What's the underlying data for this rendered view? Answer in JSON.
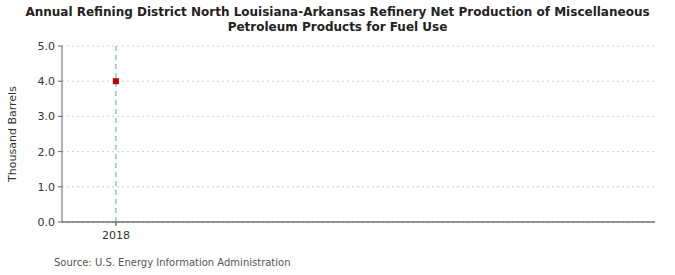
{
  "chart_data": {
    "type": "scatter",
    "title": "Annual Refining District North Louisiana-Arkansas Refinery Net Production of Miscellaneous\nPetroleum Products for Fuel Use",
    "ylabel": "Thousand Barrels",
    "source": "Source: U.S. Energy Information Administration",
    "x": [
      2018
    ],
    "values": [
      4
    ],
    "xlim": [
      2017.6,
      2022.0
    ],
    "ylim": [
      0,
      5
    ],
    "xticks": [
      2018
    ],
    "yticks": [
      {
        "value": 0,
        "label": "0.0"
      },
      {
        "value": 1,
        "label": "1.0"
      },
      {
        "value": 2,
        "label": "2.0"
      },
      {
        "value": 3,
        "label": "3.0"
      },
      {
        "value": 4,
        "label": "4.0"
      },
      {
        "value": 5,
        "label": "5.0"
      }
    ],
    "color": "#c00000",
    "marker": "square",
    "grid": true
  }
}
